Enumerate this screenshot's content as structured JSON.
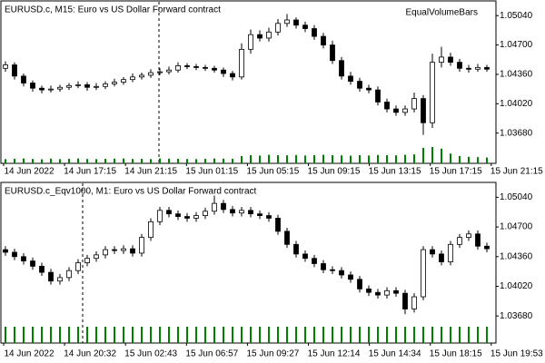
{
  "chart_data": [
    {
      "type": "candlestick",
      "title": "EURUSD.c, M15:  Euro vs US Dollar Forward contract",
      "label": "EqualVolumeBars",
      "open": [
        1.0443,
        1.0447,
        1.0434,
        1.0426,
        1.042,
        1.0418,
        1.0419,
        1.0421,
        1.0423,
        1.0424,
        1.0421,
        1.0422,
        1.0425,
        1.0427,
        1.043,
        1.0433,
        1.0435,
        1.0438,
        1.0439,
        1.0441,
        1.0446,
        1.0445,
        1.0444,
        1.0443,
        1.0441,
        1.0437,
        1.0433,
        1.0465,
        1.0482,
        1.0478,
        1.0485,
        1.0495,
        1.0499,
        1.0493,
        1.0489,
        1.048,
        1.047,
        1.0452,
        1.0434,
        1.0428,
        1.042,
        1.0418,
        1.0404,
        1.0396,
        1.0392,
        1.0396,
        1.0408,
        1.038,
        1.045,
        1.0456,
        1.045,
        1.0443,
        1.0442,
        1.0444
      ],
      "high": [
        1.0451,
        1.045,
        1.0437,
        1.0429,
        1.0423,
        1.0423,
        1.0424,
        1.0426,
        1.0428,
        1.0427,
        1.0426,
        1.0428,
        1.0431,
        1.0433,
        1.0437,
        1.0438,
        1.0442,
        1.0443,
        1.0445,
        1.045,
        1.0449,
        1.0448,
        1.0447,
        1.0446,
        1.0444,
        1.044,
        1.0472,
        1.0488,
        1.0487,
        1.049,
        1.05,
        1.0506,
        1.0502,
        1.0497,
        1.0493,
        1.0484,
        1.0475,
        1.0456,
        1.0439,
        1.0432,
        1.0424,
        1.0422,
        1.0408,
        1.04,
        1.04,
        1.0415,
        1.0412,
        1.046,
        1.0468,
        1.0461,
        1.0454,
        1.0447,
        1.0448,
        1.0447
      ],
      "low": [
        1.0439,
        1.043,
        1.0422,
        1.0416,
        1.0414,
        1.0415,
        1.0416,
        1.0418,
        1.042,
        1.0417,
        1.0418,
        1.0419,
        1.0422,
        1.0424,
        1.0427,
        1.043,
        1.0432,
        1.0435,
        1.0436,
        1.0438,
        1.0442,
        1.0441,
        1.044,
        1.0438,
        1.0433,
        1.0429,
        1.043,
        1.046,
        1.0474,
        1.0474,
        1.0481,
        1.0491,
        1.0489,
        1.0485,
        1.0476,
        1.0466,
        1.0448,
        1.043,
        1.0424,
        1.0416,
        1.0414,
        1.04,
        1.0392,
        1.0388,
        1.0388,
        1.0392,
        1.0366,
        1.0374,
        1.0444,
        1.0446,
        1.0439,
        1.0438,
        1.0439,
        1.0439
      ],
      "close": [
        1.0447,
        1.0434,
        1.0426,
        1.042,
        1.0418,
        1.0419,
        1.0421,
        1.0423,
        1.0424,
        1.0421,
        1.0422,
        1.0425,
        1.0427,
        1.043,
        1.0433,
        1.0435,
        1.0438,
        1.0439,
        1.0441,
        1.0446,
        1.0445,
        1.0444,
        1.0443,
        1.0441,
        1.0437,
        1.0433,
        1.0465,
        1.0482,
        1.0478,
        1.0485,
        1.0495,
        1.0499,
        1.0493,
        1.0489,
        1.048,
        1.047,
        1.0452,
        1.0434,
        1.0428,
        1.042,
        1.0418,
        1.0404,
        1.0396,
        1.0392,
        1.0396,
        1.0408,
        1.038,
        1.045,
        1.0456,
        1.045,
        1.0443,
        1.0442,
        1.0444,
        1.0442
      ],
      "volume": [
        520,
        560,
        600,
        540,
        500,
        580,
        520,
        560,
        600,
        540,
        520,
        560,
        580,
        600,
        540,
        560,
        520,
        600,
        580,
        560,
        540,
        520,
        560,
        600,
        580,
        560,
        900,
        1000,
        950,
        1050,
        1000,
        980,
        1020,
        960,
        1000,
        1050,
        1000,
        980,
        940,
        1000,
        960,
        1020,
        1000,
        980,
        1050,
        1100,
        1900,
        2000,
        1800,
        1200,
        900,
        800,
        760,
        720
      ],
      "ylim": [
        1.0333,
        1.052
      ],
      "yticks": [
        {
          "value": 1.0504,
          "label": "1.05040"
        },
        {
          "value": 1.047,
          "label": "1.04700"
        },
        {
          "value": 1.0436,
          "label": "1.04360"
        },
        {
          "value": 1.0402,
          "label": "1.04020"
        },
        {
          "value": 1.0368,
          "label": "1.03680"
        }
      ],
      "time_labels": [
        "14 Jun 2022",
        "14 Jun 17:15",
        "14 Jun 21:15",
        "15 Jun 01:15",
        "15 Jun 05:15",
        "15 Jun 09:15",
        "15 Jun 13:15",
        "15 Jun 17:15",
        "15 Jun 21:15"
      ],
      "volume_color": "#008000",
      "candle_color": "#000000"
    },
    {
      "type": "candlestick",
      "title": "EURUSD.c_Eqv1000, M1:  Euro vs US Dollar Forward contract",
      "open": [
        1.0444,
        1.0441,
        1.0436,
        1.0431,
        1.0425,
        1.0418,
        1.0408,
        1.0412,
        1.042,
        1.0429,
        1.0434,
        1.0438,
        1.0444,
        1.0443,
        1.0445,
        1.044,
        1.0458,
        1.0476,
        1.0489,
        1.0485,
        1.0482,
        1.048,
        1.0483,
        1.0488,
        1.0497,
        1.049,
        1.0486,
        1.0489,
        1.0485,
        1.0483,
        1.048,
        1.0465,
        1.045,
        1.0439,
        1.0434,
        1.0428,
        1.0421,
        1.042,
        1.0415,
        1.041,
        1.0399,
        1.0395,
        1.0392,
        1.0397,
        1.0394,
        1.0376,
        1.039,
        1.0444,
        1.0439,
        1.043,
        1.045,
        1.0458,
        1.0462,
        1.0448
      ],
      "high": [
        1.0448,
        1.0445,
        1.044,
        1.0435,
        1.0429,
        1.0422,
        1.0416,
        1.0424,
        1.0433,
        1.0438,
        1.0442,
        1.0448,
        1.0448,
        1.0449,
        1.0449,
        1.0462,
        1.048,
        1.0493,
        1.0493,
        1.0489,
        1.0486,
        1.0487,
        1.0492,
        1.0506,
        1.0501,
        1.0494,
        1.0493,
        1.0493,
        1.0489,
        1.0487,
        1.0484,
        1.0469,
        1.0454,
        1.0443,
        1.0438,
        1.0432,
        1.0425,
        1.0424,
        1.0419,
        1.0414,
        1.0403,
        1.0399,
        1.0401,
        1.0401,
        1.0398,
        1.0394,
        1.0448,
        1.0448,
        1.0443,
        1.0454,
        1.0462,
        1.0466,
        1.0466,
        1.0452
      ],
      "low": [
        1.0437,
        1.0432,
        1.0427,
        1.0421,
        1.0414,
        1.0404,
        1.0404,
        1.0408,
        1.0416,
        1.0425,
        1.043,
        1.0434,
        1.0439,
        1.0439,
        1.0436,
        1.0436,
        1.0454,
        1.0472,
        1.0481,
        1.0478,
        1.0476,
        1.0476,
        1.0479,
        1.0484,
        1.0486,
        1.0482,
        1.0482,
        1.0481,
        1.0479,
        1.0476,
        1.0461,
        1.0446,
        1.0435,
        1.043,
        1.0424,
        1.0417,
        1.0416,
        1.0411,
        1.0406,
        1.0395,
        1.0391,
        1.0388,
        1.0388,
        1.039,
        1.037,
        1.0372,
        1.0386,
        1.0435,
        1.0426,
        1.0426,
        1.0446,
        1.0454,
        1.0444,
        1.0441
      ],
      "close": [
        1.0441,
        1.0436,
        1.0431,
        1.0425,
        1.0418,
        1.0408,
        1.0412,
        1.042,
        1.0429,
        1.0434,
        1.0438,
        1.0444,
        1.0443,
        1.0445,
        1.044,
        1.0458,
        1.0476,
        1.0489,
        1.0485,
        1.0482,
        1.048,
        1.0483,
        1.0488,
        1.0497,
        1.049,
        1.0486,
        1.0489,
        1.0485,
        1.0483,
        1.048,
        1.0465,
        1.045,
        1.0439,
        1.0434,
        1.0428,
        1.0421,
        1.042,
        1.0415,
        1.041,
        1.0399,
        1.0395,
        1.0392,
        1.0397,
        1.0394,
        1.0376,
        1.039,
        1.0444,
        1.0439,
        1.043,
        1.045,
        1.0458,
        1.0462,
        1.0448,
        1.0445
      ],
      "volume": [
        1000,
        1000,
        1000,
        1000,
        1000,
        1000,
        1000,
        1000,
        1000,
        1000,
        1000,
        1000,
        1000,
        1000,
        1000,
        1000,
        1000,
        1000,
        1000,
        1000,
        1000,
        1000,
        1000,
        1000,
        1000,
        1000,
        1000,
        1000,
        1000,
        1000,
        1000,
        1000,
        1000,
        1000,
        1000,
        1000,
        1000,
        1000,
        1000,
        1000,
        1000,
        1000,
        1000,
        1000,
        1000,
        1000,
        1000,
        1000,
        1000,
        1000,
        1000,
        1000,
        1000,
        1000
      ],
      "ylim": [
        1.0337,
        1.052
      ],
      "yticks": [
        {
          "value": 1.0504,
          "label": "1.05040"
        },
        {
          "value": 1.047,
          "label": "1.04700"
        },
        {
          "value": 1.0436,
          "label": "1.04360"
        },
        {
          "value": 1.0402,
          "label": "1.04020"
        },
        {
          "value": 1.0368,
          "label": "1.03680"
        }
      ],
      "time_labels": [
        "14 Jun 2022",
        "14 Jun 20:32",
        "15 Jun 02:43",
        "15 Jun 06:57",
        "15 Jun 09:27",
        "15 Jun 12:14",
        "15 Jun 14:34",
        "15 Jun 18:15",
        "15 Jun 19:53"
      ],
      "volume_color": "#008000",
      "candle_color": "#000000"
    }
  ]
}
